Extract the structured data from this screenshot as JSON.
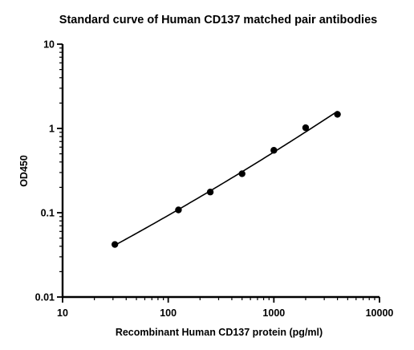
{
  "chart_data": {
    "type": "scatter",
    "title": "Standard curve of Human CD137 matched pair antibodies",
    "xlabel": "Recombinant Human CD137 protein (pg/ml)",
    "ylabel": "OD450",
    "xscale": "log",
    "yscale": "log",
    "xlim": [
      10,
      10000
    ],
    "ylim": [
      0.01,
      10
    ],
    "xticks": [
      10,
      100,
      1000,
      10000
    ],
    "xtick_labels": [
      "10",
      "100",
      "1000",
      "10000"
    ],
    "yticks": [
      0.01,
      0.1,
      1,
      10
    ],
    "ytick_labels": [
      "0.01",
      "0.1",
      "1",
      "10"
    ],
    "grid": false,
    "legend": "none",
    "series": [
      {
        "x": [
          31.25,
          125,
          250,
          500,
          1000,
          2000,
          4000
        ],
        "y": [
          0.042,
          0.108,
          0.176,
          0.29,
          0.55,
          1.02,
          1.47
        ]
      }
    ],
    "fit_curve": true,
    "colors": {
      "marker": "#000000",
      "line": "#000000",
      "axis": "#000000"
    }
  }
}
